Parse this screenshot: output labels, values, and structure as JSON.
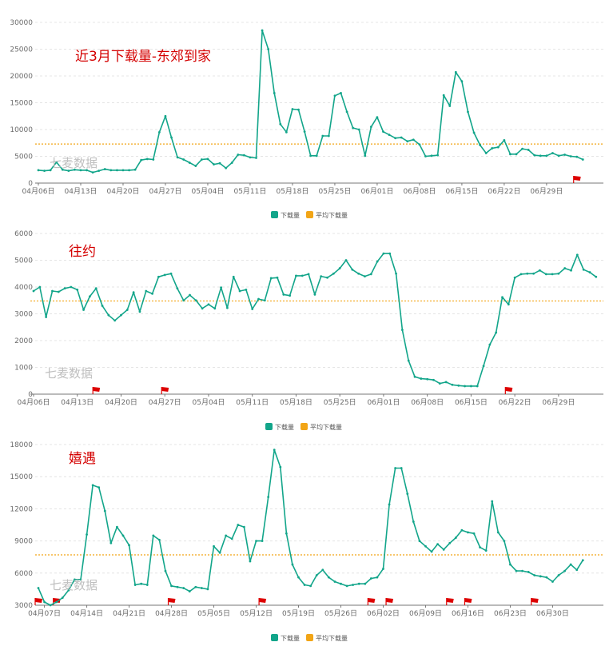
{
  "legend": {
    "series_label": "下载量",
    "avg_label": "平均下载量"
  },
  "colors": {
    "line": "#12a58a",
    "avg": "#f2a516",
    "flag": "#dd0000",
    "grid": "#e4e4e4",
    "axis": "#777777"
  },
  "watermark": "七麦数据",
  "chart_data": [
    {
      "type": "line",
      "title": "近3月下载量-东郊到家",
      "ylim": [
        0,
        30000
      ],
      "yticks": [
        0,
        5000,
        10000,
        15000,
        20000,
        25000,
        30000
      ],
      "average": 7300,
      "x_labels": [
        "04月06日",
        "04月13日",
        "04月20日",
        "04月27日",
        "05月04日",
        "05月11日",
        "05月18日",
        "05月25日",
        "06月01日",
        "06月08日",
        "06月15日",
        "06月22日",
        "06月29日"
      ],
      "flags": [
        89
      ],
      "values": [
        2400,
        2300,
        2400,
        3900,
        2500,
        2300,
        2500,
        2400,
        2400,
        2000,
        2300,
        2600,
        2400,
        2400,
        2400,
        2400,
        2500,
        4300,
        4500,
        4400,
        9500,
        12500,
        8500,
        4800,
        4400,
        3800,
        3200,
        4400,
        4500,
        3500,
        3700,
        2800,
        3800,
        5300,
        5200,
        4800,
        4700,
        28500,
        25000,
        16800,
        11000,
        9500,
        13800,
        13700,
        9600,
        5100,
        5100,
        8800,
        8800,
        16300,
        16800,
        13300,
        10300,
        10000,
        5100,
        10500,
        12300,
        9600,
        9000,
        8400,
        8500,
        7800,
        8100,
        7200,
        5000,
        5100,
        5200,
        16400,
        14400,
        20700,
        19000,
        13300,
        9400,
        7100,
        5600,
        6500,
        6700,
        8000,
        5400,
        5400,
        6400,
        6200,
        5200,
        5100,
        5100,
        5600,
        5100,
        5300,
        5000,
        4900,
        4400
      ]
    },
    {
      "type": "line",
      "title": "往约",
      "ylim": [
        0,
        6000
      ],
      "yticks": [
        0,
        1000,
        2000,
        3000,
        4000,
        5000,
        6000
      ],
      "average": 3480,
      "x_labels": [
        "04月06日",
        "04月13日",
        "04月20日",
        "04月27日",
        "05月04日",
        "05月11日",
        "05月18日",
        "05月25日",
        "06月01日",
        "06月08日",
        "06月15日",
        "06月22日",
        "06月29日"
      ],
      "flags": [
        10,
        21,
        76
      ],
      "values": [
        3850,
        4000,
        2880,
        3850,
        3820,
        3950,
        4000,
        3900,
        3150,
        3650,
        3950,
        3300,
        2950,
        2750,
        2950,
        3150,
        3800,
        3080,
        3850,
        3750,
        4380,
        4450,
        4500,
        3950,
        3500,
        3700,
        3500,
        3200,
        3350,
        3200,
        3980,
        3220,
        4380,
        3850,
        3900,
        3180,
        3550,
        3500,
        4330,
        4350,
        3720,
        3680,
        4420,
        4420,
        4480,
        3720,
        4400,
        4350,
        4500,
        4700,
        5000,
        4650,
        4500,
        4400,
        4480,
        4950,
        5250,
        5250,
        4500,
        2400,
        1250,
        650,
        580,
        560,
        530,
        400,
        450,
        350,
        320,
        300,
        300,
        300,
        1050,
        1850,
        2300,
        3620,
        3350,
        4350,
        4480,
        4500,
        4500,
        4620,
        4480,
        4480,
        4500,
        4700,
        4620,
        5200,
        4650,
        4550,
        4380
      ]
    },
    {
      "type": "line",
      "title": "嬉遇",
      "ylim": [
        3000,
        18000
      ],
      "yticks": [
        3000,
        6000,
        9000,
        12000,
        15000,
        18000
      ],
      "average": 7700,
      "x_labels": [
        "04月07日",
        "04月14日",
        "04月21日",
        "04月28日",
        "05月05日",
        "05月12日",
        "05月19日",
        "05月26日",
        "06月02日",
        "06月09日",
        "06月16日",
        "06月23日",
        "06月30日"
      ],
      "flags": [
        0,
        3,
        22,
        37,
        55,
        58,
        68,
        71,
        82
      ],
      "values": [
        4600,
        3300,
        3000,
        3300,
        3700,
        4400,
        5400,
        5400,
        9600,
        14200,
        14000,
        11800,
        8800,
        10300,
        9500,
        8600,
        4900,
        5000,
        4900,
        9500,
        9100,
        6200,
        4800,
        4700,
        4600,
        4300,
        4700,
        4600,
        4500,
        8500,
        7900,
        9500,
        9200,
        10500,
        10300,
        7100,
        9000,
        9000,
        13100,
        17500,
        15900,
        9700,
        6800,
        5600,
        4900,
        4800,
        5800,
        6300,
        5600,
        5200,
        5000,
        4800,
        4900,
        5000,
        5000,
        5500,
        5600,
        6400,
        12400,
        15800,
        15800,
        13400,
        10800,
        9000,
        8500,
        8000,
        8700,
        8200,
        8800,
        9300,
        10000,
        9800,
        9700,
        8400,
        8100,
        12700,
        9800,
        9000,
        6800,
        6200,
        6200,
        6100,
        5800,
        5700,
        5600,
        5200,
        5800,
        6200,
        6800,
        6300,
        7200
      ]
    }
  ]
}
